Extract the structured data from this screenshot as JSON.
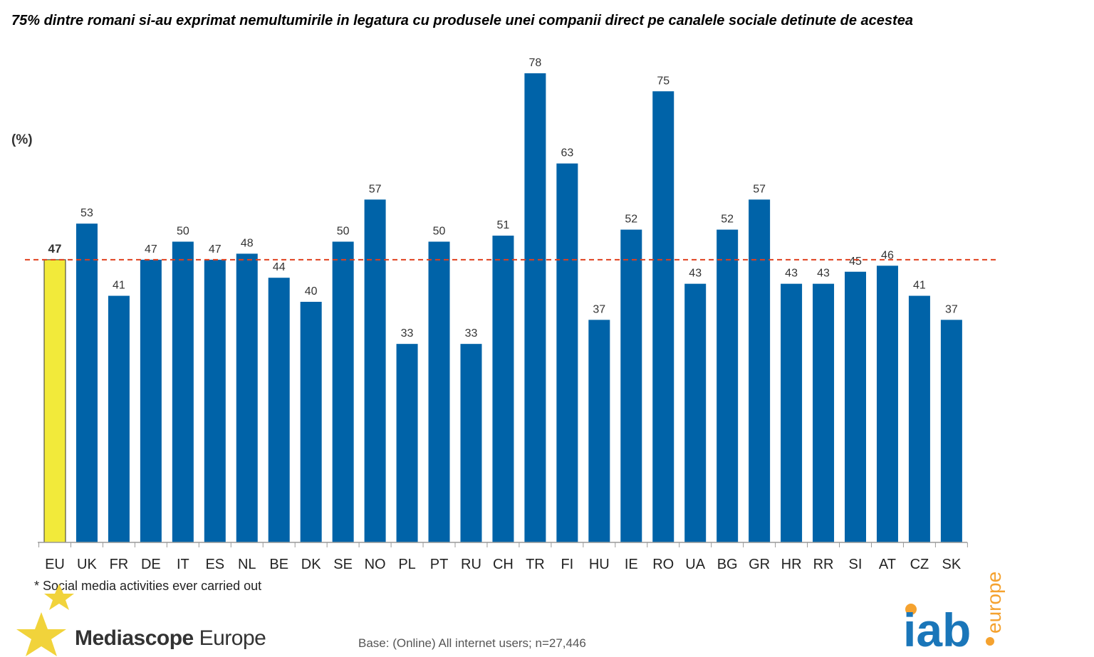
{
  "title": "75% dintre romani si-au exprimat nemultumirile in legatura cu produsele unei companii direct pe canalele sociale detinute de acestea",
  "footnote": "* Social media activities  ever carried out",
  "base": "Base: (Online) All internet users; n=27,446",
  "logos": {
    "mediascope_bold": "Mediascope",
    "mediascope_regular": "Europe",
    "iab": "iab",
    "iab_sub": "europe"
  },
  "colors": {
    "bar": "#0063A8",
    "highlight": "#F2EA3A",
    "reference_line": "#E0401E",
    "iab_blue": "#1A76B9",
    "iab_orange": "#F5A22F",
    "star": "#F1D33B"
  },
  "chart_data": {
    "type": "bar",
    "title": "75% dintre romani si-au exprimat nemultumirile in legatura cu produsele unei companii direct pe canalele sociale detinute de acestea",
    "ylabel": "(%)",
    "xlabel": "",
    "ylim": [
      0,
      80
    ],
    "grid": false,
    "highlight_category": "EU",
    "reference_line": {
      "value": 47,
      "style": "dashed"
    },
    "categories": [
      "EU",
      "UK",
      "FR",
      "DE",
      "IT",
      "ES",
      "NL",
      "BE",
      "DK",
      "SE",
      "NO",
      "PL",
      "PT",
      "RU",
      "CH",
      "TR",
      "FI",
      "HU",
      "IE",
      "RO",
      "UA",
      "BG",
      "GR",
      "HR",
      "RR",
      "SI",
      "AT",
      "CZ",
      "SK"
    ],
    "values": [
      47,
      53,
      41,
      47,
      50,
      47,
      48,
      44,
      40,
      50,
      57,
      33,
      50,
      33,
      51,
      78,
      63,
      37,
      52,
      75,
      43,
      52,
      57,
      43,
      43,
      45,
      46,
      41,
      37
    ]
  }
}
